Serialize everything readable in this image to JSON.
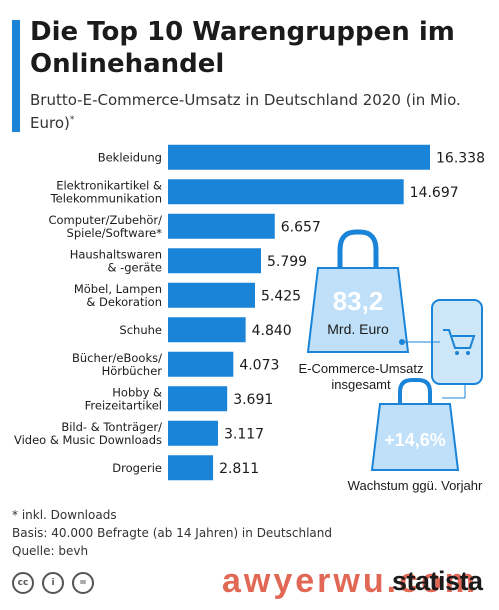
{
  "header": {
    "title": "Die Top 10 Warengruppen im Onlinehandel",
    "subtitle": "Brutto-E-Commerce-Umsatz in Deutschland 2020 (in Mio. Euro)",
    "subtitle_mark": "*"
  },
  "chart_data": {
    "type": "bar",
    "orientation": "horizontal",
    "title": "Die Top 10 Warengruppen im Onlinehandel",
    "subtitle": "Brutto-E-Commerce-Umsatz in Deutschland 2020 (in Mio. Euro)",
    "categories": [
      [
        "Bekleidung"
      ],
      [
        "Elektronikartikel &",
        "Telekommunikation"
      ],
      [
        "Computer/Zubehör/",
        "Spiele/Software*"
      ],
      [
        "Haushaltswaren",
        "& -geräte"
      ],
      [
        "Möbel, Lampen",
        "& Dekoration"
      ],
      [
        "Schuhe"
      ],
      [
        "Bücher/eBooks/",
        "Hörbücher"
      ],
      [
        "Hobby &",
        "Freizeitartikel"
      ],
      [
        "Bild- & Tonträger/",
        "Video & Music Downloads"
      ],
      [
        "Drogerie"
      ]
    ],
    "values": [
      16338,
      14697,
      6657,
      5799,
      5425,
      4840,
      4073,
      3691,
      3117,
      2811
    ],
    "value_labels": [
      "16.338",
      "14.697",
      "6.657",
      "5.799",
      "5.425",
      "4.840",
      "4.073",
      "3.691",
      "3.117",
      "2.811"
    ],
    "xlim": [
      0,
      16338
    ],
    "bar_color": "#1a84d8",
    "grid": false
  },
  "callouts": {
    "total_value": "83,2",
    "total_unit": "Mrd. Euro",
    "total_caption_line1": "E-Commerce-Umsatz",
    "total_caption_line2": "insgesamt",
    "growth_value": "+14,6%",
    "growth_caption": "Wachstum ggü. Vorjahr"
  },
  "footer": {
    "note": "* inkl. Downloads",
    "basis": "Basis: 40.000 Befragte (ab 14 Jahren) in Deutschland",
    "source": "Quelle: bevh"
  },
  "license_icons": [
    "cc-icon",
    "person-icon",
    "equals-icon"
  ],
  "license_labels": [
    "cc",
    "i",
    "="
  ],
  "logo": "statista",
  "watermark": "awyerwu.com",
  "colors": {
    "accent": "#1a84d8",
    "bag_fill": "#bfe0f8",
    "bag_stroke": "#1a84d8",
    "phone": "#cde6f8"
  }
}
